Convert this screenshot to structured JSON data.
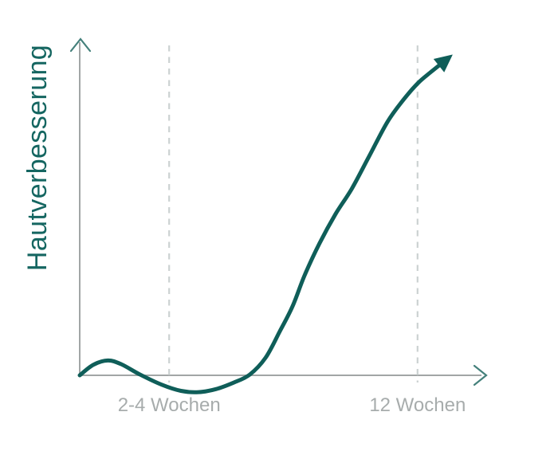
{
  "colors": {
    "background": "#ffffff",
    "curve": "#0f5e59",
    "y_axis_title": "#156661",
    "axis_line": "#a2a6a6",
    "axis_arrow": "#44807b",
    "gridline": "#ccd2d2",
    "tick_label": "#a7acac"
  },
  "chart_data": {
    "type": "line",
    "title": "",
    "xlabel": "",
    "ylabel": "Hautverbesserung",
    "x_unit": "Wochen",
    "grid": "two vertical dashed reference lines only",
    "legend": "none",
    "axes_style": "unlabeled conceptual axes with arrowheads; curve ends in an upward arrow",
    "coordinate_system": "normalized fractions of axis extents; x: 0=origin to 1=x-axis arrow, y: 0=baseline to 1=y-axis arrow, negative y = below baseline",
    "x_ticks": [
      {
        "label": "2-4 Wochen",
        "x": 0.22
      },
      {
        "label": "12 Wochen",
        "x": 0.831
      }
    ],
    "gridlines": [
      {
        "x": 0.22
      },
      {
        "x": 0.831
      }
    ],
    "series": [
      {
        "name": "Hautverbesserung",
        "points": [
          [
            0.0,
            0.0
          ],
          [
            0.033,
            0.031
          ],
          [
            0.069,
            0.044
          ],
          [
            0.102,
            0.033
          ],
          [
            0.149,
            0.002
          ],
          [
            0.202,
            -0.028
          ],
          [
            0.249,
            -0.046
          ],
          [
            0.292,
            -0.05
          ],
          [
            0.335,
            -0.041
          ],
          [
            0.378,
            -0.022
          ],
          [
            0.418,
            0.002
          ],
          [
            0.457,
            0.052
          ],
          [
            0.492,
            0.13
          ],
          [
            0.524,
            0.206
          ],
          [
            0.553,
            0.296
          ],
          [
            0.59,
            0.392
          ],
          [
            0.629,
            0.478
          ],
          [
            0.669,
            0.553
          ],
          [
            0.712,
            0.65
          ],
          [
            0.757,
            0.752
          ],
          [
            0.798,
            0.82
          ],
          [
            0.833,
            0.868
          ],
          [
            0.865,
            0.901
          ],
          [
            0.894,
            0.929
          ]
        ],
        "shape_summary": {
          "initial_bump_peak": [
            0.069,
            0.044
          ],
          "dip_below_baseline_minimum": [
            0.292,
            -0.05
          ],
          "returns_to_baseline": [
            0.418,
            0.0
          ],
          "continues_rising_past": [
            0.894,
            0.929
          ]
        }
      }
    ]
  }
}
